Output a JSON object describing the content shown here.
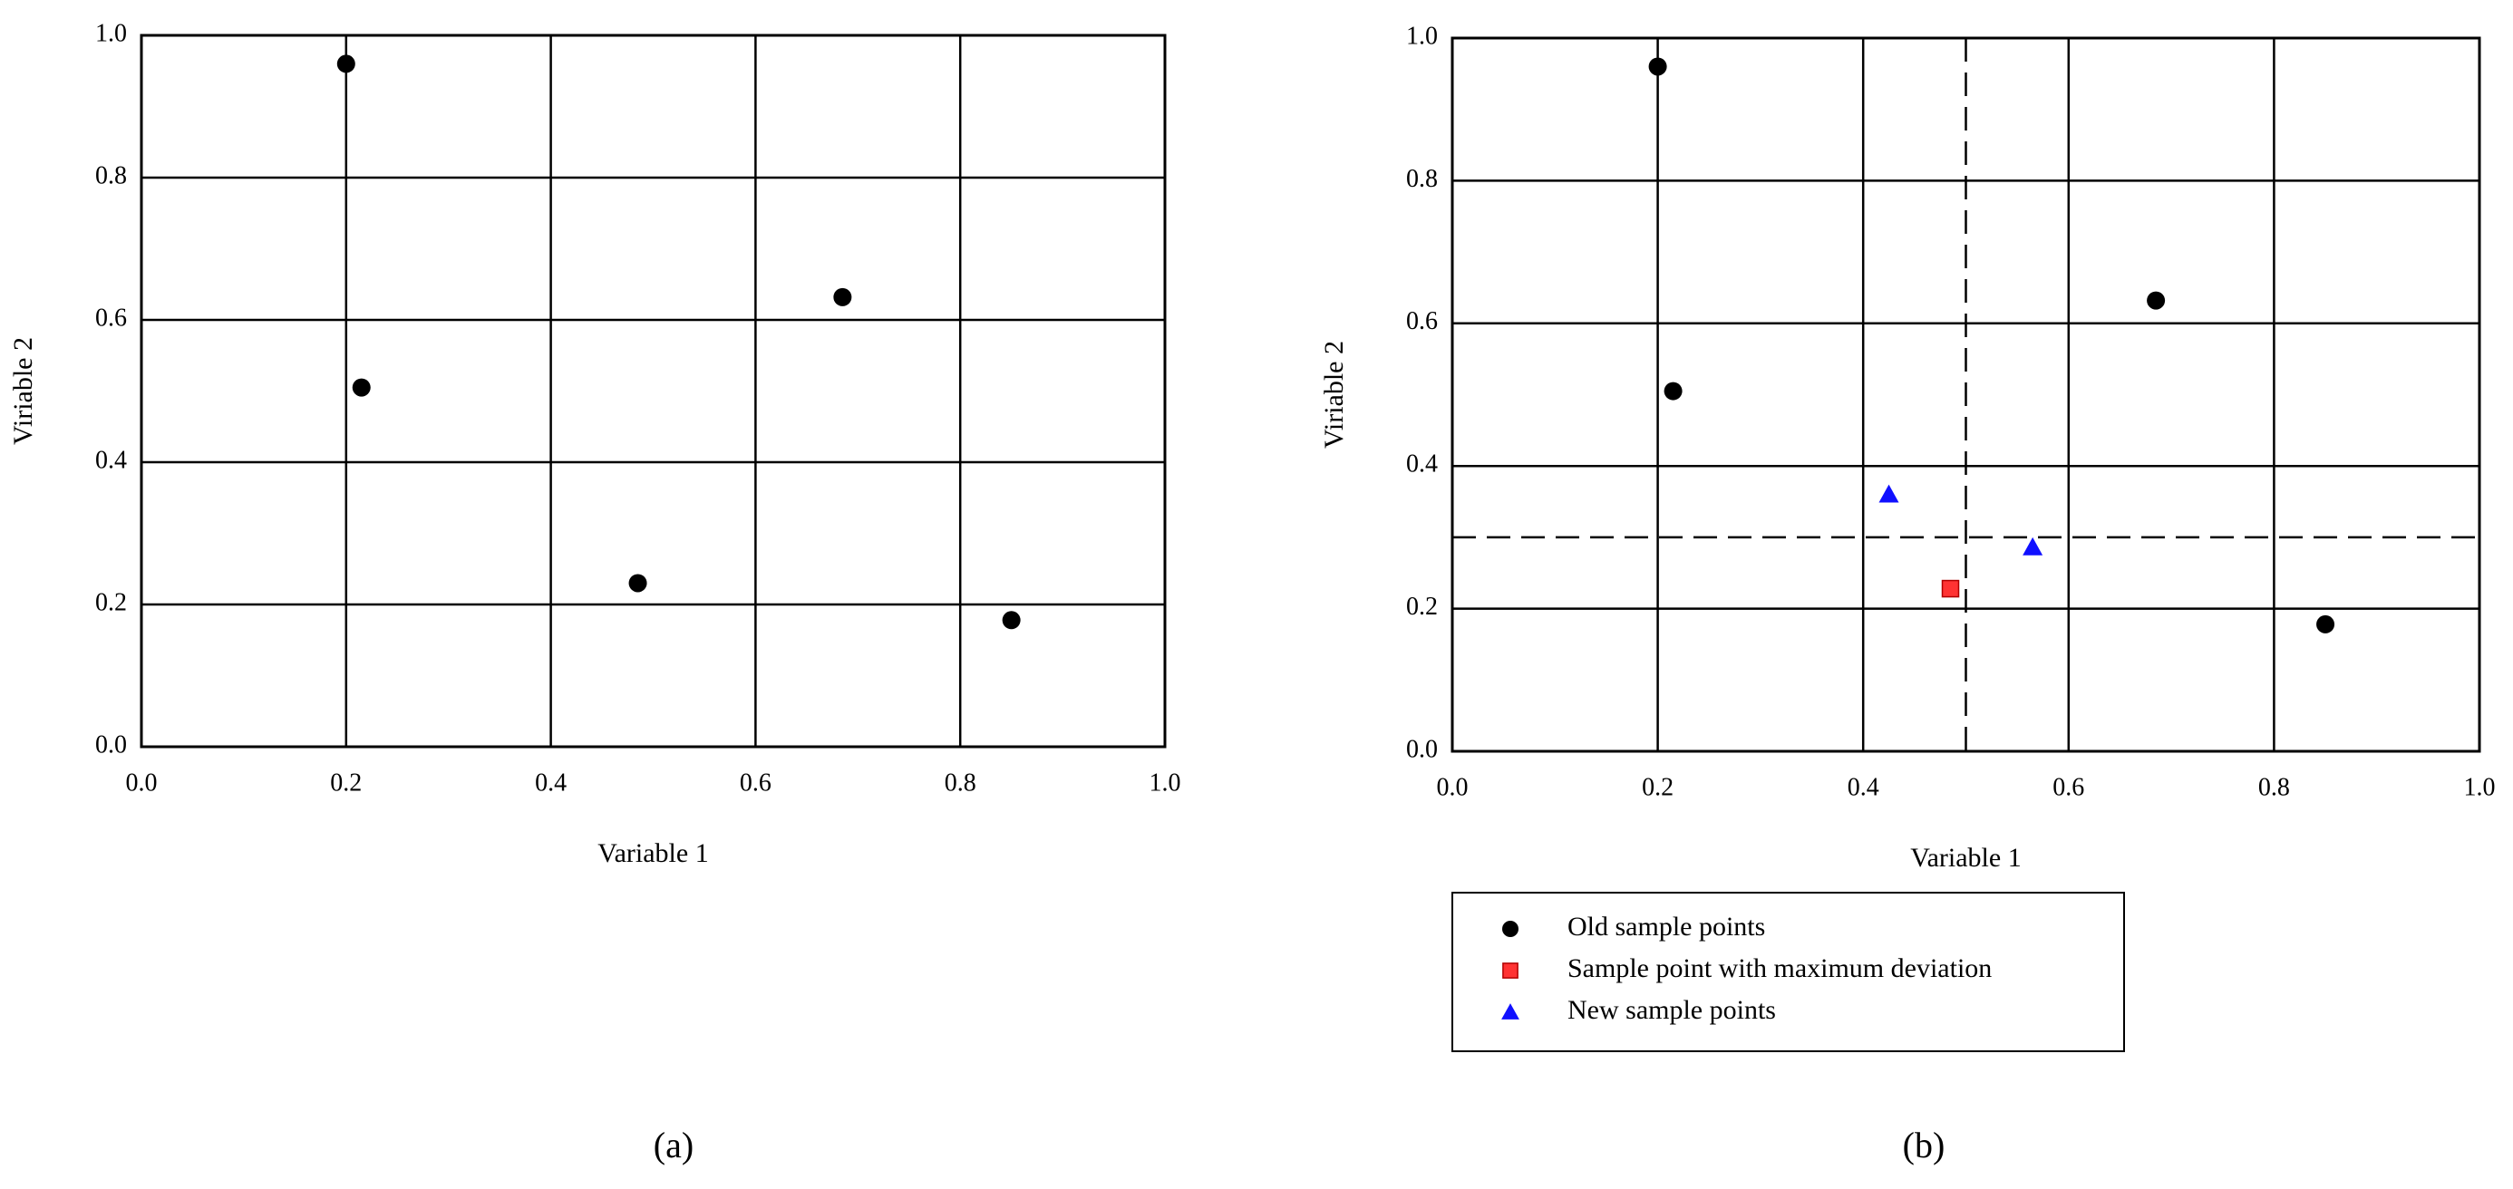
{
  "chart_data": [
    {
      "type": "scatter",
      "caption": "(a)",
      "x_label": "Variable 1",
      "y_label": "Viriable 2",
      "xlim": [
        0,
        1
      ],
      "ylim": [
        0,
        1
      ],
      "xticks": [
        {
          "value": 0,
          "label": "0.0"
        },
        0.2,
        0.4,
        0.6,
        0.8,
        {
          "value": 1,
          "label": "1.0"
        }
      ],
      "yticks": [
        {
          "value": 0,
          "label": "0.0"
        },
        0.2,
        0.4,
        0.6,
        0.8,
        {
          "value": 1,
          "label": "1.0"
        }
      ],
      "grid": true,
      "legend": false,
      "series": [
        {
          "marker": "circle",
          "color": "#000000",
          "x": [
            0.2,
            0.215,
            0.485,
            0.685,
            0.85
          ],
          "values": [
            0.96,
            0.505,
            0.23,
            0.632,
            0.178
          ]
        }
      ]
    },
    {
      "type": "scatter",
      "caption": "(b)",
      "x_label": "Variable 1",
      "y_label": "Viriable 2",
      "xlim": [
        0,
        1
      ],
      "ylim": [
        0,
        1
      ],
      "xticks": [
        {
          "value": 0,
          "label": "0.0"
        },
        0.2,
        0.4,
        0.6,
        0.8,
        {
          "value": 1,
          "label": "1.0"
        }
      ],
      "yticks": [
        {
          "value": 0,
          "label": "0.0"
        },
        0.2,
        0.4,
        0.6,
        0.8,
        {
          "value": 1,
          "label": "1.0"
        }
      ],
      "grid": true,
      "legend": true,
      "vlines": [
        0.5
      ],
      "hlines": [
        0.3
      ],
      "series": [
        {
          "name": "Old sample points",
          "marker": "circle",
          "color": "#000000",
          "x": [
            0.2,
            0.215,
            0.685,
            0.85
          ],
          "values": [
            0.96,
            0.505,
            0.632,
            0.178
          ]
        },
        {
          "name": "Sample point with maximum deviation",
          "marker": "square",
          "color": "#ff3333",
          "x": [
            0.485
          ],
          "values": [
            0.228
          ]
        },
        {
          "name": "New sample points",
          "marker": "triangle",
          "color": "#1010ff",
          "x": [
            0.425,
            0.565
          ],
          "values": [
            0.36,
            0.286
          ]
        }
      ]
    }
  ]
}
